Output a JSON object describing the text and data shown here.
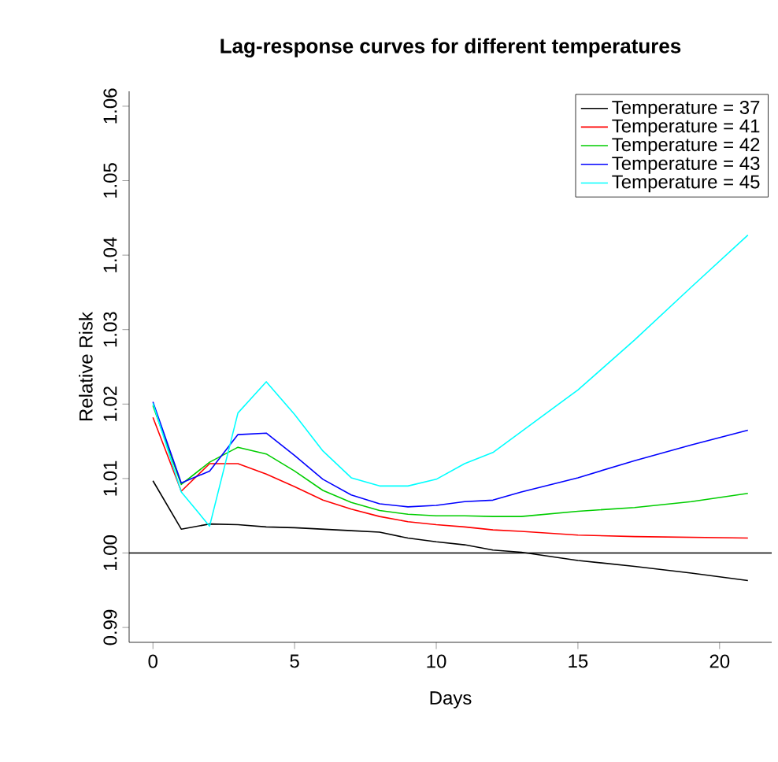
{
  "chart_data": {
    "type": "line",
    "title": "Lag-response curves for different temperatures",
    "xlabel": "Days",
    "ylabel": "Relative Risk",
    "x": [
      0,
      1,
      2,
      3,
      4,
      5,
      6,
      7,
      8,
      9,
      10,
      11,
      12,
      13,
      15,
      17,
      19,
      21
    ],
    "series": [
      {
        "name": "Temperature = 37",
        "color": "#000000",
        "values": [
          1.0097,
          1.0032,
          1.0039,
          1.0038,
          1.0035,
          1.0034,
          1.0032,
          1.003,
          1.0028,
          1.002,
          1.0015,
          1.0011,
          1.0004,
          1.0001,
          0.999,
          0.9982,
          0.9973,
          0.9963
        ]
      },
      {
        "name": "Temperature = 41",
        "color": "#ff0000",
        "values": [
          1.0182,
          1.0083,
          1.012,
          1.012,
          1.0106,
          1.0089,
          1.0071,
          1.0059,
          1.0049,
          1.0042,
          1.0038,
          1.0035,
          1.0031,
          1.0029,
          1.0024,
          1.0022,
          1.0021,
          1.002
        ]
      },
      {
        "name": "Temperature = 42",
        "color": "#00cd00",
        "values": [
          1.0198,
          1.0092,
          1.0122,
          1.0142,
          1.0133,
          1.011,
          1.0084,
          1.0068,
          1.0057,
          1.0052,
          1.005,
          1.005,
          1.0049,
          1.0049,
          1.0056,
          1.0061,
          1.0069,
          1.008
        ]
      },
      {
        "name": "Temperature = 43",
        "color": "#0000ff",
        "values": [
          1.0203,
          1.0094,
          1.011,
          1.0159,
          1.0161,
          1.0131,
          1.0099,
          1.0078,
          1.0066,
          1.0062,
          1.0064,
          1.0069,
          1.0071,
          1.0082,
          1.0101,
          1.0124,
          1.0145,
          1.0165
        ]
      },
      {
        "name": "Temperature = 45",
        "color": "#00ffff",
        "values": [
          1.0201,
          1.0082,
          1.0036,
          1.0188,
          1.023,
          1.0186,
          1.0137,
          1.0101,
          1.009,
          1.009,
          1.0099,
          1.012,
          1.0135,
          1.0163,
          1.0219,
          1.0286,
          1.0357,
          1.0427
        ]
      }
    ],
    "xlim": [
      -0.84,
      21.84
    ],
    "ylim": [
      0.988,
      1.062
    ],
    "xticks": [
      0,
      5,
      10,
      15,
      20
    ],
    "yticks": [
      0.99,
      {
        "value": 1,
        "label": "1.00"
      },
      1.01,
      1.02,
      1.03,
      1.04,
      1.05,
      1.06
    ],
    "legend": "top right",
    "line_style": "solid",
    "marker": "none",
    "ref_lines": [
      {
        "axis": "y",
        "value": 1,
        "color": "#000000"
      }
    ]
  }
}
